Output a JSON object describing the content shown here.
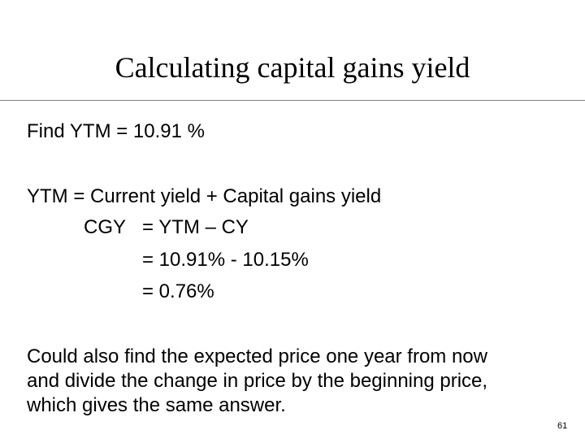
{
  "slide": {
    "title": "Calculating capital gains yield",
    "lines": {
      "find": "Find YTM = 10.91 %",
      "ytm_eq": "YTM = Current yield + Capital gains yield",
      "cgy_label": "CGY",
      "cgy_eq1": "= YTM – CY",
      "cgy_eq2": "= 10.91% - 10.15%",
      "cgy_eq3": "= 0.76%"
    },
    "paragraph": [
      "Could also find the expected price one year from now",
      "and divide the change in price by the beginning price,",
      "which gives the same answer."
    ],
    "page_number": "61"
  }
}
